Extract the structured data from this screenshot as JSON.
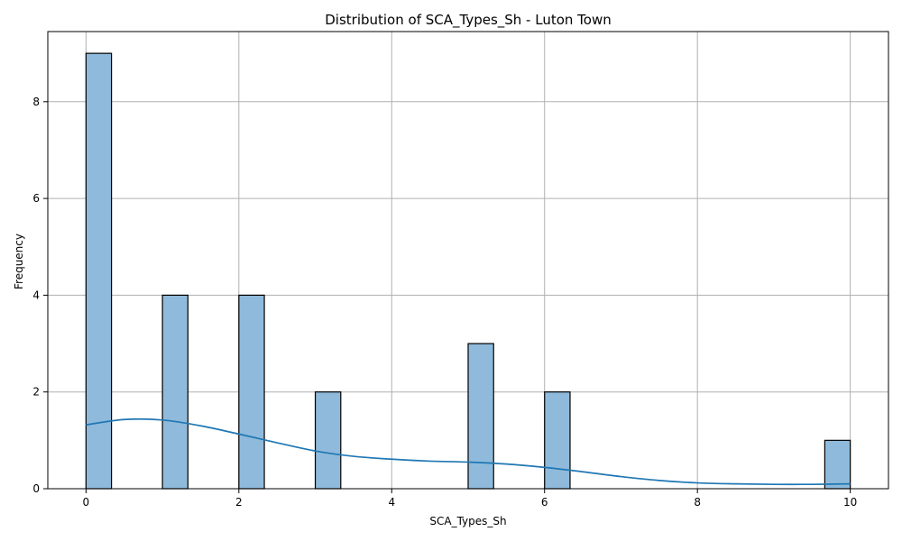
{
  "chart_data": {
    "type": "bar",
    "title": "Distribution of SCA_Types_Sh - Luton Town",
    "xlabel": "SCA_Types_Sh",
    "ylabel": "Frequency",
    "xlim": [
      -0.5,
      10.5
    ],
    "ylim": [
      0,
      9.45
    ],
    "xticks": [
      0,
      2,
      4,
      6,
      8,
      10
    ],
    "yticks": [
      0,
      2,
      4,
      6,
      8
    ],
    "grid": true,
    "bin_width": 0.3333,
    "bins": [
      {
        "x0": 0.0,
        "x1": 0.3333,
        "count": 9
      },
      {
        "x0": 1.0,
        "x1": 1.3333,
        "count": 4
      },
      {
        "x0": 2.0,
        "x1": 2.3333,
        "count": 4
      },
      {
        "x0": 3.0,
        "x1": 3.3333,
        "count": 2
      },
      {
        "x0": 5.0,
        "x1": 5.3333,
        "count": 3
      },
      {
        "x0": 6.0,
        "x1": 6.3333,
        "count": 2
      },
      {
        "x0": 9.6667,
        "x1": 10.0,
        "count": 1
      }
    ],
    "kde": {
      "x": [
        0,
        0.5,
        1,
        1.5,
        2,
        2.5,
        3,
        3.5,
        4,
        4.5,
        5,
        5.5,
        6,
        6.5,
        7,
        7.5,
        8,
        8.5,
        9,
        9.5,
        10
      ],
      "y": [
        1.32,
        1.43,
        1.42,
        1.3,
        1.13,
        0.95,
        0.78,
        0.67,
        0.61,
        0.57,
        0.55,
        0.51,
        0.44,
        0.35,
        0.25,
        0.17,
        0.12,
        0.1,
        0.09,
        0.09,
        0.1
      ]
    },
    "colors": {
      "bar_fill": "#8fbadb",
      "bar_edge": "#000000",
      "kde_line": "#1f77b4",
      "grid": "#b0b0b0"
    }
  }
}
